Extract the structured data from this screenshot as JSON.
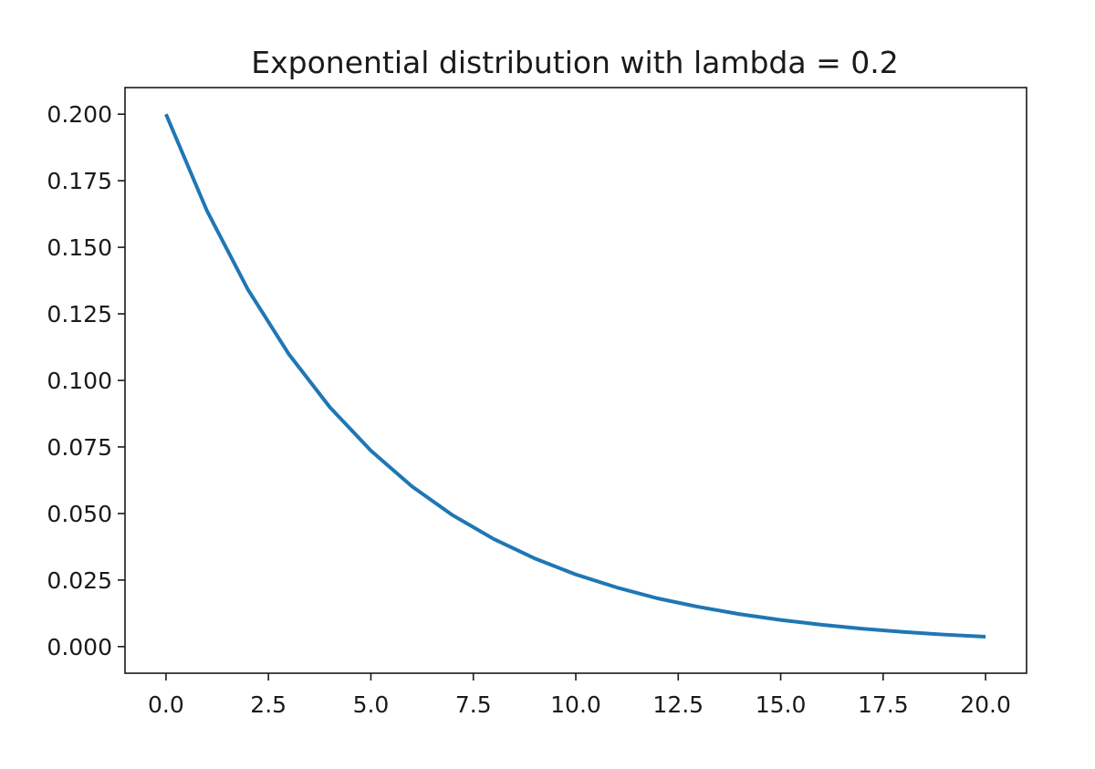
{
  "chart_data": {
    "type": "line",
    "title": "Exponential distribution with lambda = 0.2",
    "xlabel": "",
    "ylabel": "",
    "xlim": [
      -1.0,
      21.0
    ],
    "ylim": [
      -0.01,
      0.21
    ],
    "x_ticks": [
      0.0,
      2.5,
      5.0,
      7.5,
      10.0,
      12.5,
      15.0,
      17.5,
      20.0
    ],
    "x_tick_labels": [
      "0.0",
      "2.5",
      "5.0",
      "7.5",
      "10.0",
      "12.5",
      "15.0",
      "17.5",
      "20.0"
    ],
    "y_ticks": [
      0.0,
      0.025,
      0.05,
      0.075,
      0.1,
      0.125,
      0.15,
      0.175,
      0.2
    ],
    "y_tick_labels": [
      "0.000",
      "0.025",
      "0.050",
      "0.075",
      "0.100",
      "0.125",
      "0.150",
      "0.175",
      "0.200"
    ],
    "grid": false,
    "legend": "none",
    "colors": {
      "line": "#1f77b4",
      "axes": "#1a1a1a",
      "background": "#ffffff"
    },
    "series": [
      {
        "x": [
          0.0,
          1.0,
          2.0,
          3.0,
          4.0,
          5.0,
          6.0,
          7.0,
          8.0,
          9.0,
          10.0,
          11.0,
          12.0,
          13.0,
          14.0,
          15.0,
          16.0,
          17.0,
          18.0,
          19.0,
          20.0
        ],
        "y": [
          0.2,
          0.1637,
          0.1341,
          0.1098,
          0.0899,
          0.0736,
          0.0602,
          0.0493,
          0.0404,
          0.0331,
          0.0271,
          0.0222,
          0.0181,
          0.0149,
          0.0122,
          0.01,
          0.0082,
          0.0067,
          0.0055,
          0.0045,
          0.0037
        ]
      }
    ]
  }
}
